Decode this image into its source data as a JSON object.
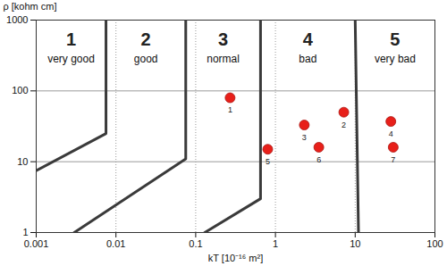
{
  "chart_data": {
    "type": "scatter",
    "x_label": "kT [10⁻¹⁶ m²]",
    "y_label": "ρ [kohm cm]",
    "log": true,
    "grid": true,
    "xlim": [
      0.001,
      100
    ],
    "ylim": [
      1,
      1000
    ],
    "xticks": [
      0.001,
      0.01,
      0.1,
      1,
      10,
      100
    ],
    "yticks": [
      1,
      10,
      100,
      1000
    ],
    "color": "#e8201a",
    "marker": "circle",
    "points": [
      {
        "label": "1",
        "x": 0.27,
        "y": 80
      },
      {
        "label": "2",
        "x": 7.2,
        "y": 50
      },
      {
        "label": "3",
        "x": 2.3,
        "y": 33
      },
      {
        "label": "4",
        "x": 28,
        "y": 37
      },
      {
        "label": "5",
        "x": 0.8,
        "y": 15
      },
      {
        "label": "6",
        "x": 3.5,
        "y": 16
      },
      {
        "label": "7",
        "x": 30,
        "y": 16
      }
    ],
    "zones": [
      {
        "number": "1",
        "name": "very good"
      },
      {
        "number": "2",
        "name": "good"
      },
      {
        "number": "3",
        "name": "normal"
      },
      {
        "number": "4",
        "name": "bad"
      },
      {
        "number": "5",
        "name": "very bad"
      }
    ],
    "boundaries": [
      {
        "x": [
          0.001,
          0.0075,
          0.0075
        ],
        "y": [
          7.5,
          25,
          1000
        ]
      },
      {
        "x": [
          0.003,
          0.075,
          0.075
        ],
        "y": [
          1,
          11,
          1000
        ]
      },
      {
        "x": [
          0.13,
          0.65,
          0.65
        ],
        "y": [
          1,
          3,
          1000
        ]
      },
      {
        "x": [
          11,
          10
        ],
        "y": [
          1,
          1000
        ]
      }
    ]
  }
}
